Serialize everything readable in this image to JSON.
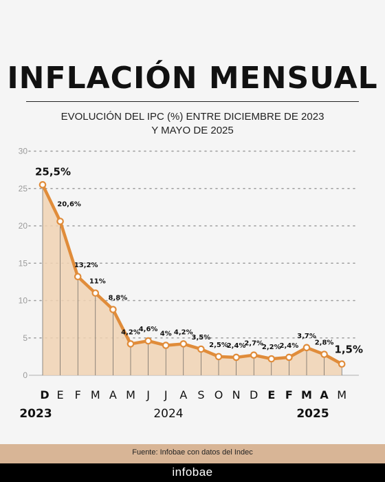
{
  "header": {
    "title": "INFLACIÓN MENSUAL",
    "subtitle_line1": "EVOLUCIÓN DEL IPC (%) ENTRE DICIEMBRE DE 2023",
    "subtitle_line2": "Y MAYO DE 2025"
  },
  "chart_data": {
    "type": "line",
    "title": "INFLACIÓN MENSUAL",
    "subtitle": "EVOLUCIÓN DEL IPC (%) ENTRE DICIEMBRE DE 2023 Y MAYO DE 2025",
    "categories": [
      "D",
      "E",
      "F",
      "M",
      "A",
      "M",
      "J",
      "J",
      "A",
      "S",
      "O",
      "N",
      "D",
      "E",
      "F",
      "M",
      "A",
      "M"
    ],
    "bold_categories": [
      0,
      13,
      14,
      15,
      16
    ],
    "values": [
      25.5,
      20.6,
      13.2,
      11,
      8.8,
      4.2,
      4.6,
      4,
      4.2,
      3.5,
      2.5,
      2.4,
      2.7,
      2.2,
      2.4,
      3.7,
      2.8,
      1.5
    ],
    "value_labels": [
      "25,5%",
      "20,6%",
      "13,2%",
      "11%",
      "8,8%",
      "4,2%",
      "4,6%",
      "4%",
      "4,2%",
      "3,5%",
      "2,5%",
      "2,4%",
      "2,7%",
      "2,2%",
      "2,4%",
      "3,7%",
      "2,8%",
      "1,5%"
    ],
    "year_labels": [
      "2023",
      "2024",
      "2025"
    ],
    "ylim": [
      0,
      30
    ],
    "yticks": [
      0,
      5,
      10,
      15,
      20,
      25,
      30
    ],
    "grid": "dotted horizontal",
    "colors": {
      "line": "#e08c3a",
      "area": "#f0d2b3",
      "marker_fill": "#ffffff",
      "axis_text": "#9a9a9a"
    }
  },
  "footer": {
    "source": "Fuente: Infobae con datos del Indec",
    "brand": "infobae"
  }
}
